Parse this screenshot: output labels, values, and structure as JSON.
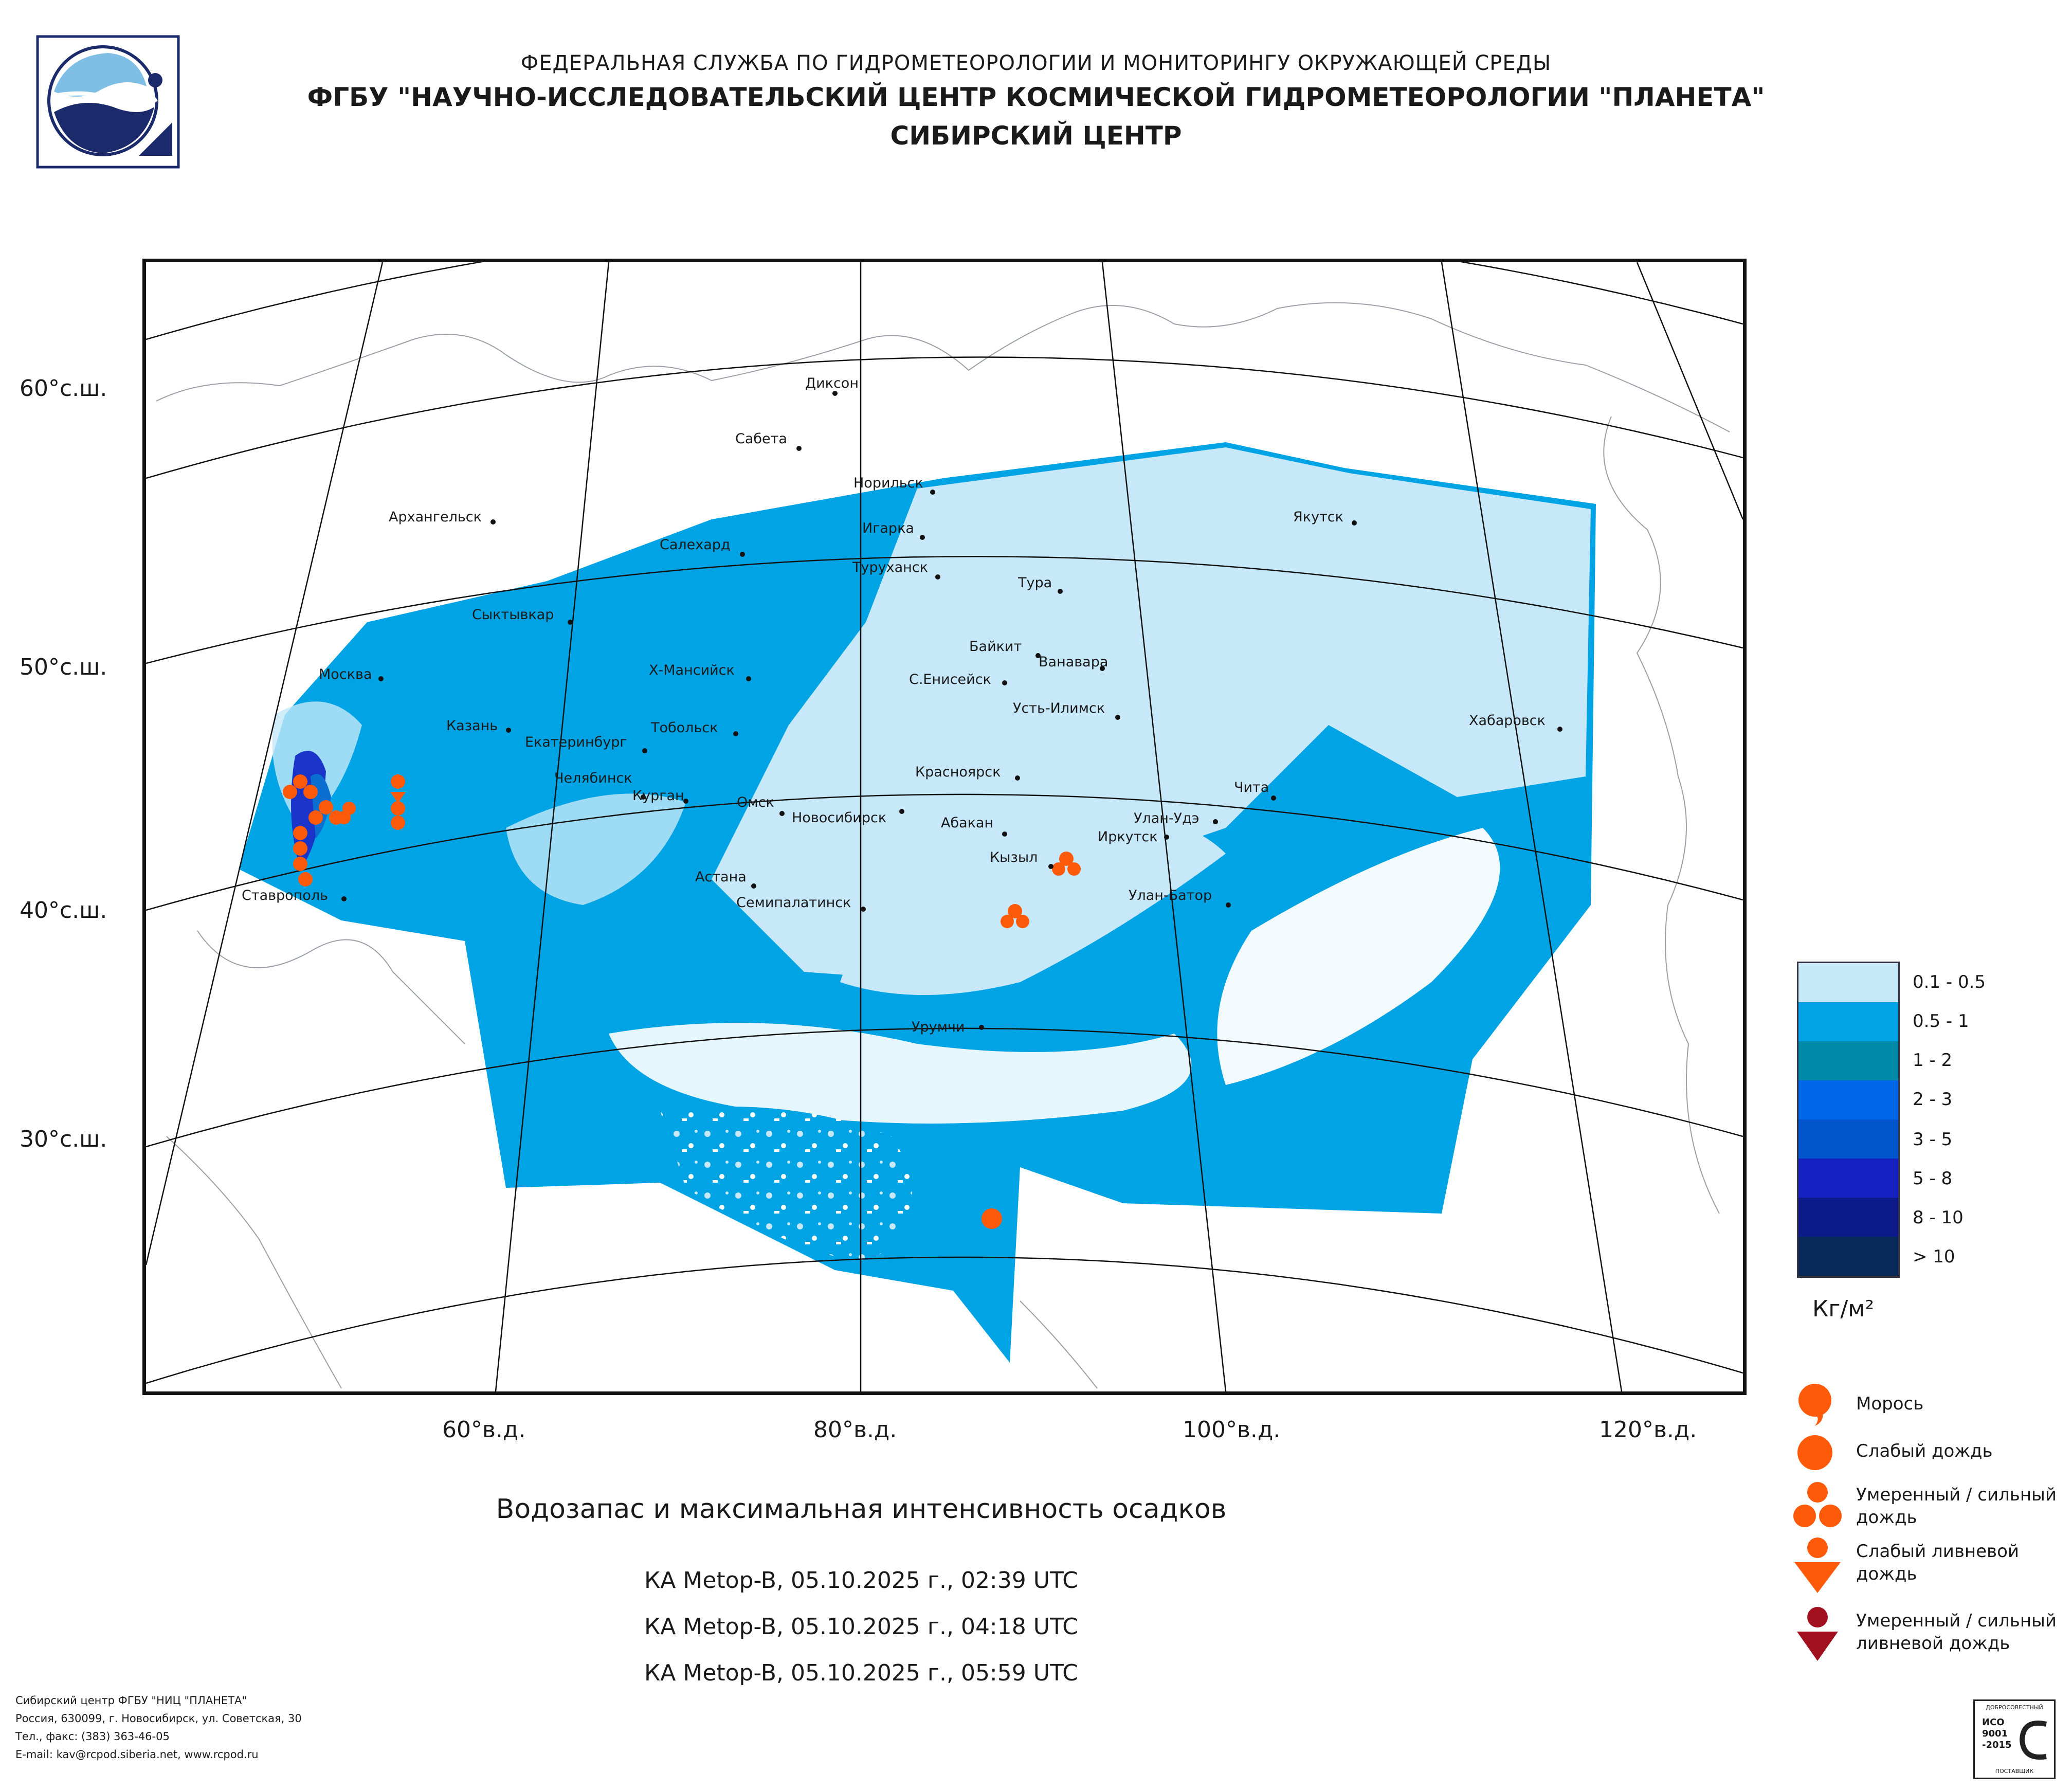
{
  "header": {
    "line1": "ФЕДЕРАЛЬНАЯ СЛУЖБА ПО ГИДРОМЕТЕОРОЛОГИИ И МОНИТОРИНГУ ОКРУЖАЮЩЕЙ СРЕДЫ",
    "line2": "ФГБУ \"НАУЧНО-ИССЛЕДОВАТЕЛЬСКИЙ ЦЕНТР КОСМИЧЕСКОЙ ГИДРОМЕТЕОРОЛОГИИ \"ПЛАНЕТА\"",
    "line3": "СИБИРСКИЙ ЦЕНТР"
  },
  "map": {
    "lat_labels": [
      "60°с.ш.",
      "50°с.ш.",
      "40°с.ш.",
      "30°с.ш."
    ],
    "lon_labels": [
      "60°в.д.",
      "80°в.д.",
      "100°в.д.",
      "120°в.д."
    ],
    "cities": [
      "Диксон",
      "Сабета",
      "Норильск",
      "Архангельск",
      "Игарка",
      "Салехард",
      "Туруханск",
      "Якутск",
      "Тура",
      "Сыктывкар",
      "Байкит",
      "Ванавара",
      "Москва",
      "Х-Мансийск",
      "С.Енисейск",
      "Усть-Илимск",
      "Казань",
      "Тобольск",
      "Хабаровск",
      "Екатеринбург",
      "Красноярск",
      "Челябинск",
      "Курган",
      "Чита",
      "Омск",
      "Новосибирск",
      "Улан-Удэ",
      "Абакан",
      "Иркутск",
      "Кызыл",
      "Астана",
      "Ставрополь",
      "Семипалатинск",
      "Улан-Батор",
      "Урумчи"
    ],
    "colors": {
      "c1": "#c6e8f8",
      "c2": "#00a3e4",
      "c3": "#0a6fd1",
      "c4": "#1a33c8",
      "drizzle": "#ff5a0a"
    }
  },
  "legend": {
    "classes": [
      {
        "label": "0.1 - 0.5",
        "color": "#c6e8f8"
      },
      {
        "label": "0.5 - 1",
        "color": "#00a3e4"
      },
      {
        "label": "1 - 2",
        "color": "#0089a8"
      },
      {
        "label": "2 - 3",
        "color": "#0066e8"
      },
      {
        "label": "3 - 5",
        "color": "#0055cc"
      },
      {
        "label": "5 - 8",
        "color": "#1720c0"
      },
      {
        "label": "8 - 10",
        "color": "#0c1a8a"
      },
      {
        "label": "> 10",
        "color": "#082a5a"
      }
    ],
    "unit": "Кг/м²",
    "symbols": [
      {
        "label": "Морось"
      },
      {
        "label": "Слабый дождь"
      },
      {
        "label": "Умеренный / сильный дождь"
      },
      {
        "label": "Слабый ливневой дождь"
      },
      {
        "label": "Умеренный / сильный ливневой дождь"
      }
    ]
  },
  "title": "Водозапас и максимальная интенсивность осадков",
  "passes": [
    "КА Metop-B, 05.10.2025 г., 02:39 UTC",
    "КА Metop-B, 05.10.2025 г., 04:18 UTC",
    "КА Metop-B, 05.10.2025 г., 05:59 UTC"
  ],
  "footer": {
    "l1": "Сибирский центр ФГБУ \"НИЦ \"ПЛАНЕТА\"",
    "l2": "Россия, 630099, г. Новосибирск, ул. Советская, 30",
    "l3": "Тел., факс: (383) 363-46-05",
    "l4": "E-mail: kav@rcpod.siberia.net, www.rcpod.ru"
  },
  "iso": {
    "top": "ДОБРОСОВЕСТНЫЙ",
    "mid": "ИСО 9001 -2015",
    "bottom": "ПОСТАВЩИК"
  }
}
